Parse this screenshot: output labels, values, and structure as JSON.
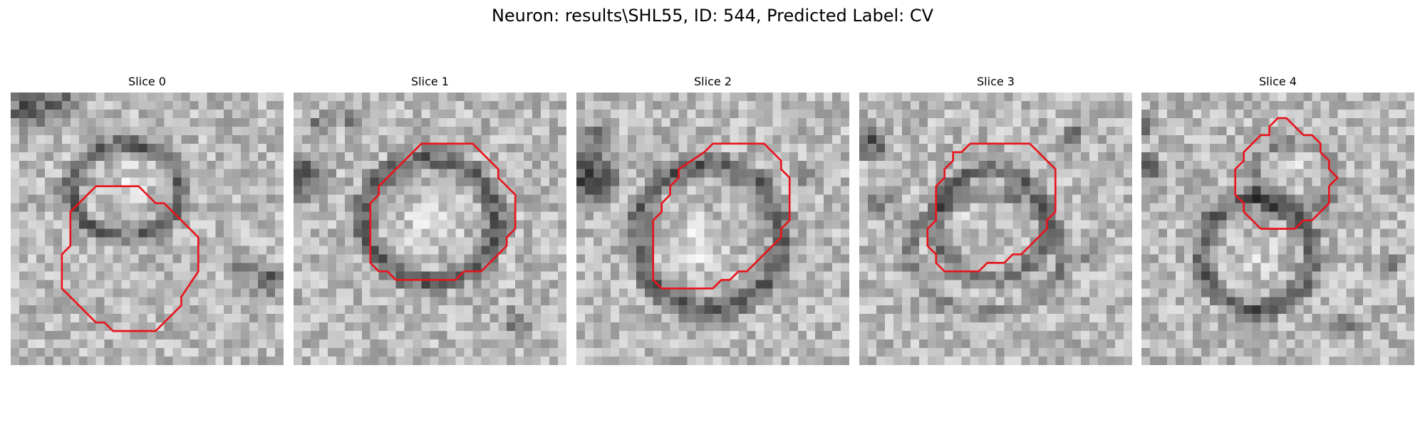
{
  "figure": {
    "title": "Neuron: results\\SHL55, ID: 544, Predicted Label: CV"
  },
  "slices": [
    {
      "title": "Slice 0",
      "outline_color": "#e8141c",
      "grid_size": 32
    },
    {
      "title": "Slice 1",
      "outline_color": "#e8141c",
      "grid_size": 32
    },
    {
      "title": "Slice 2",
      "outline_color": "#e8141c",
      "grid_size": 32
    },
    {
      "title": "Slice 3",
      "outline_color": "#e8141c",
      "grid_size": 32
    },
    {
      "title": "Slice 4",
      "outline_color": "#e8141c",
      "grid_size": 32
    }
  ],
  "colormap": "gray"
}
